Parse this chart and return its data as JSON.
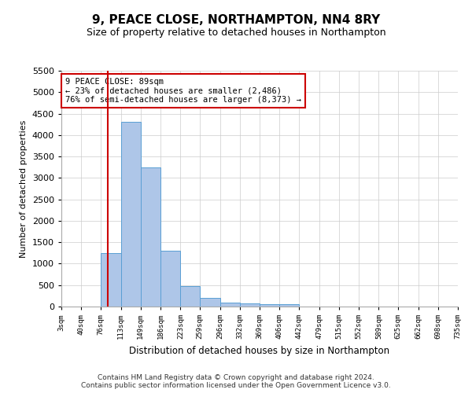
{
  "title": "9, PEACE CLOSE, NORTHAMPTON, NN4 8RY",
  "subtitle": "Size of property relative to detached houses in Northampton",
  "xlabel": "Distribution of detached houses by size in Northampton",
  "ylabel": "Number of detached properties",
  "footer_line1": "Contains HM Land Registry data © Crown copyright and database right 2024.",
  "footer_line2": "Contains public sector information licensed under the Open Government Licence v3.0.",
  "bin_edges": [
    3,
    40,
    76,
    113,
    149,
    186,
    223,
    259,
    296,
    332,
    369,
    406,
    442,
    479,
    515,
    552,
    589,
    625,
    662,
    698,
    735
  ],
  "bar_heights": [
    0,
    0,
    1250,
    4300,
    3250,
    1300,
    475,
    200,
    100,
    75,
    50,
    50,
    0,
    0,
    0,
    0,
    0,
    0,
    0,
    0
  ],
  "bar_color": "#aec6e8",
  "bar_edge_color": "#5a9fd4",
  "property_size": 89,
  "red_line_color": "#cc0000",
  "annotation_line1": "9 PEACE CLOSE: 89sqm",
  "annotation_line2": "← 23% of detached houses are smaller (2,486)",
  "annotation_line3": "76% of semi-detached houses are larger (8,373) →",
  "annotation_box_color": "#ffffff",
  "annotation_box_edge_color": "#cc0000",
  "ylim": [
    0,
    5500
  ],
  "yticks": [
    0,
    500,
    1000,
    1500,
    2000,
    2500,
    3000,
    3500,
    4000,
    4500,
    5000,
    5500
  ],
  "background_color": "#ffffff",
  "grid_color": "#cccccc",
  "title_fontsize": 11,
  "subtitle_fontsize": 9
}
